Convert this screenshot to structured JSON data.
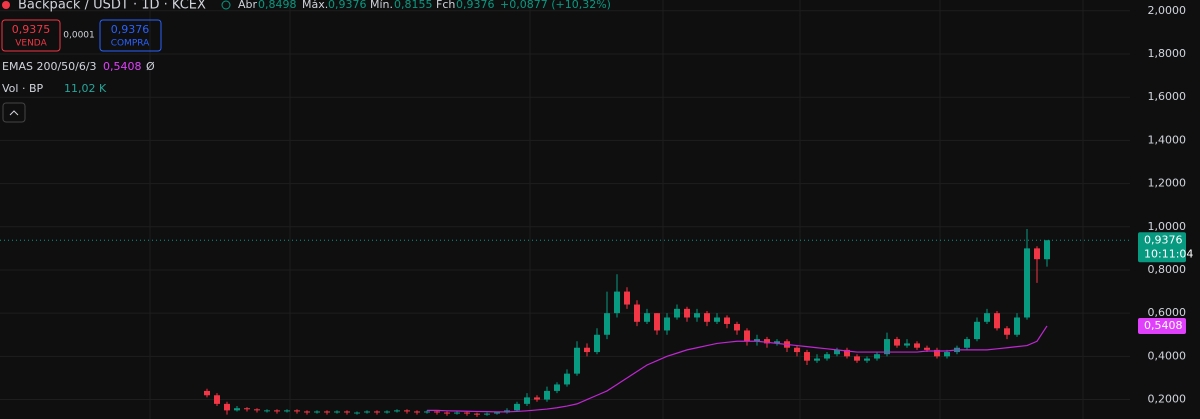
{
  "header": {
    "symbol": "Backpack / USDT · 1D · KCEX",
    "open_label": "Abr",
    "open": "0,8498",
    "high_label": "Máx.",
    "high": "0,9376",
    "low_label": "Mín.",
    "low": "0,8155",
    "close_label": "Fch",
    "close": "0,9376",
    "change": "+0,0877 (+10,32%)",
    "sell_price": "0,9375",
    "sell_label": "VENDA",
    "spread": "0,0001",
    "buy_price": "0,9376",
    "buy_label": "COMPRA",
    "ema_label": "EMAS 200/50/6/3",
    "ema_value": "0,5408",
    "ema_symbol": "Ø",
    "vol_label": "Vol · BP",
    "vol_value": "11,02 K"
  },
  "chart_data": {
    "type": "candlestick",
    "up_color": "#089981",
    "down_color": "#f23645",
    "open": [
      0.24,
      0.22,
      0.18,
      0.15,
      0.16,
      0.155,
      0.15,
      0.15,
      0.145,
      0.15,
      0.145,
      0.14,
      0.145,
      0.14,
      0.145,
      0.14,
      0.14,
      0.145,
      0.14,
      0.145,
      0.15,
      0.145,
      0.14,
      0.145,
      0.14,
      0.135,
      0.14,
      0.135,
      0.13,
      0.135,
      0.14,
      0.15,
      0.18,
      0.21,
      0.2,
      0.24,
      0.27,
      0.32,
      0.44,
      0.42,
      0.5,
      0.6,
      0.7,
      0.64,
      0.56,
      0.6,
      0.52,
      0.58,
      0.62,
      0.58,
      0.6,
      0.56,
      0.58,
      0.55,
      0.52,
      0.47,
      0.48,
      0.46,
      0.47,
      0.44,
      0.42,
      0.38,
      0.39,
      0.41,
      0.43,
      0.4,
      0.38,
      0.39,
      0.41,
      0.48,
      0.45,
      0.46,
      0.44,
      0.43,
      0.4,
      0.42,
      0.44,
      0.48,
      0.56,
      0.6,
      0.53,
      0.5,
      0.58,
      0.9,
      0.8498
    ],
    "high": [
      0.25,
      0.23,
      0.19,
      0.17,
      0.165,
      0.16,
      0.155,
      0.155,
      0.155,
      0.155,
      0.15,
      0.15,
      0.15,
      0.15,
      0.15,
      0.145,
      0.15,
      0.15,
      0.15,
      0.155,
      0.155,
      0.15,
      0.15,
      0.15,
      0.145,
      0.145,
      0.145,
      0.14,
      0.14,
      0.145,
      0.16,
      0.19,
      0.23,
      0.22,
      0.26,
      0.28,
      0.34,
      0.47,
      0.46,
      0.53,
      0.7,
      0.78,
      0.72,
      0.66,
      0.62,
      0.6,
      0.6,
      0.64,
      0.63,
      0.62,
      0.61,
      0.6,
      0.59,
      0.56,
      0.53,
      0.5,
      0.49,
      0.48,
      0.48,
      0.45,
      0.43,
      0.41,
      0.42,
      0.44,
      0.44,
      0.41,
      0.4,
      0.42,
      0.51,
      0.49,
      0.48,
      0.47,
      0.45,
      0.44,
      0.43,
      0.45,
      0.49,
      0.58,
      0.62,
      0.61,
      0.54,
      0.6,
      0.99,
      0.91,
      0.9376
    ],
    "low": [
      0.21,
      0.17,
      0.13,
      0.145,
      0.145,
      0.14,
      0.14,
      0.135,
      0.14,
      0.135,
      0.13,
      0.135,
      0.13,
      0.135,
      0.13,
      0.13,
      0.135,
      0.13,
      0.135,
      0.14,
      0.135,
      0.13,
      0.135,
      0.13,
      0.125,
      0.13,
      0.125,
      0.12,
      0.125,
      0.13,
      0.135,
      0.145,
      0.17,
      0.19,
      0.19,
      0.23,
      0.26,
      0.31,
      0.4,
      0.41,
      0.48,
      0.58,
      0.62,
      0.54,
      0.55,
      0.5,
      0.5,
      0.57,
      0.56,
      0.56,
      0.54,
      0.55,
      0.53,
      0.5,
      0.45,
      0.45,
      0.44,
      0.45,
      0.42,
      0.4,
      0.36,
      0.37,
      0.38,
      0.4,
      0.39,
      0.37,
      0.37,
      0.38,
      0.4,
      0.44,
      0.44,
      0.43,
      0.42,
      0.39,
      0.39,
      0.41,
      0.43,
      0.47,
      0.55,
      0.52,
      0.48,
      0.49,
      0.57,
      0.74,
      0.8155
    ],
    "close": [
      0.22,
      0.18,
      0.15,
      0.16,
      0.155,
      0.15,
      0.15,
      0.145,
      0.15,
      0.145,
      0.14,
      0.145,
      0.14,
      0.145,
      0.14,
      0.14,
      0.145,
      0.14,
      0.145,
      0.15,
      0.145,
      0.14,
      0.145,
      0.14,
      0.135,
      0.14,
      0.135,
      0.13,
      0.135,
      0.14,
      0.15,
      0.18,
      0.21,
      0.2,
      0.24,
      0.27,
      0.32,
      0.44,
      0.42,
      0.5,
      0.6,
      0.7,
      0.64,
      0.56,
      0.6,
      0.52,
      0.58,
      0.62,
      0.58,
      0.6,
      0.56,
      0.58,
      0.55,
      0.52,
      0.47,
      0.48,
      0.46,
      0.47,
      0.44,
      0.42,
      0.38,
      0.39,
      0.41,
      0.43,
      0.4,
      0.38,
      0.39,
      0.41,
      0.48,
      0.45,
      0.46,
      0.44,
      0.43,
      0.4,
      0.42,
      0.44,
      0.48,
      0.56,
      0.6,
      0.53,
      0.5,
      0.58,
      0.9,
      0.85,
      0.9376
    ],
    "ema": {
      "color": "#c026d3",
      "values": [
        null,
        null,
        null,
        null,
        null,
        null,
        null,
        null,
        null,
        null,
        null,
        null,
        null,
        null,
        null,
        null,
        null,
        null,
        null,
        null,
        null,
        null,
        0.15,
        0.15,
        0.148,
        0.147,
        0.146,
        0.145,
        0.144,
        0.143,
        0.143,
        0.145,
        0.148,
        0.152,
        0.156,
        0.162,
        0.17,
        0.18,
        0.2,
        0.22,
        0.24,
        0.27,
        0.3,
        0.33,
        0.36,
        0.38,
        0.4,
        0.415,
        0.43,
        0.44,
        0.45,
        0.46,
        0.465,
        0.47,
        0.47,
        0.47,
        0.465,
        0.46,
        0.455,
        0.45,
        0.445,
        0.44,
        0.435,
        0.43,
        0.425,
        0.42,
        0.42,
        0.42,
        0.42,
        0.42,
        0.42,
        0.42,
        0.425,
        0.425,
        0.425,
        0.43,
        0.43,
        0.43,
        0.43,
        0.435,
        0.44,
        0.445,
        0.45,
        0.47,
        0.5408
      ]
    },
    "last_price": {
      "value": 0.9376,
      "label": "0,9376"
    },
    "countdown": "10:11:04",
    "ema_last": {
      "value": 0.5408,
      "label": "0,5408"
    },
    "ylim": [
      0.11,
      2.05
    ],
    "yticks": [
      {
        "value": 0.2,
        "label": "0,2000"
      },
      {
        "value": 0.4,
        "label": "0,4000"
      },
      {
        "value": 0.6,
        "label": "0,6000"
      },
      {
        "value": 0.8,
        "label": "0,8000"
      },
      {
        "value": 1,
        "label": "1,0000"
      },
      {
        "value": 1.2,
        "label": "1,2000"
      },
      {
        "value": 1.4,
        "label": "1,4000"
      },
      {
        "value": 1.6,
        "label": "1,6000"
      },
      {
        "value": 1.8,
        "label": "1,8000"
      },
      {
        "value": 2,
        "label": "2,0000"
      }
    ],
    "grid": true
  }
}
